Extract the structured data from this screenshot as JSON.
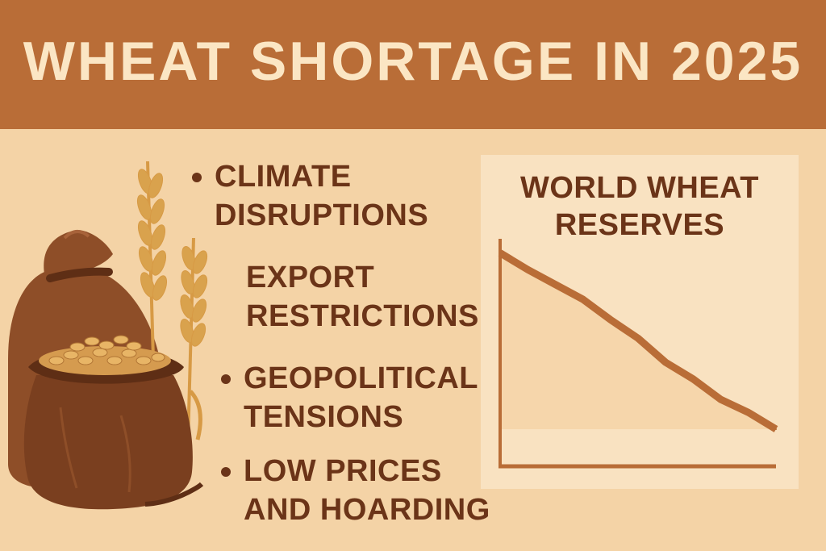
{
  "header": {
    "title": "WHEAT SHORTAGE IN 2025"
  },
  "bullets": [
    {
      "line1": "CLIMATE",
      "line2": "DISRUPTIONS",
      "has_dot": true
    },
    {
      "line1": "EXPORT",
      "line2": "RESTRICTIONS",
      "has_dot": false
    },
    {
      "line1": "GEOPOLITICAL",
      "line2": "TENSIONS",
      "has_dot": true
    },
    {
      "line1": "LOW PRICES",
      "line2": "AND HOARDING",
      "has_dot": true
    }
  ],
  "chart_panel": {
    "title_line1": "WORLD WHEAT",
    "title_line2": "RESERVES"
  },
  "chart_data": {
    "type": "area",
    "title": "WORLD WHEAT RESERVES",
    "xlabel": "",
    "ylabel": "",
    "x": [
      0,
      1,
      2,
      3,
      4,
      5,
      6,
      7,
      8,
      9,
      10
    ],
    "values": [
      95,
      86,
      78,
      70,
      59,
      49,
      36,
      27,
      16,
      9,
      0
    ],
    "ylim": [
      0,
      100
    ],
    "grid": false
  },
  "colors": {
    "header_bg": "#b96d37",
    "title_text": "#fbe6c4",
    "page_bg": "#f4d3a6",
    "text_brown": "#6b3418",
    "chart_line": "#b96d37",
    "chart_panel_bg": "#f9e2c1"
  },
  "icons": {
    "sack": "grain-sack-icon",
    "wheat": "wheat-stalk-icon"
  }
}
